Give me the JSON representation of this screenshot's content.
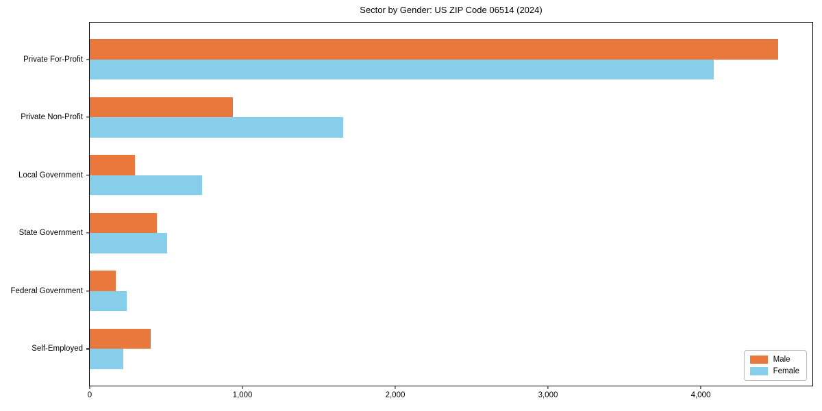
{
  "page": {
    "background": "#ffffff",
    "text_color": "#000000",
    "spine_color": "#000000"
  },
  "chart_data": {
    "type": "bar",
    "orientation": "horizontal",
    "title": "Sector by Gender: US ZIP Code 06514 (2024)",
    "xlabel": "",
    "ylabel": "",
    "grid": false,
    "categories": [
      "Private For-Profit",
      "Private Non-Profit",
      "Local Government",
      "State Government",
      "Federal Government",
      "Self-Employed"
    ],
    "series": [
      {
        "name": "Male",
        "color": "#e8783c",
        "values": [
          4506,
          937,
          296,
          438,
          170,
          400
        ]
      },
      {
        "name": "Female",
        "color": "#87ceeb",
        "values": [
          4085,
          1658,
          735,
          506,
          242,
          220
        ]
      }
    ],
    "xlim": [
      0,
      4731
    ],
    "x_ticks": [
      {
        "value": 0,
        "label": "0"
      },
      {
        "value": 1000,
        "label": "1,000"
      },
      {
        "value": 2000,
        "label": "2,000"
      },
      {
        "value": 3000,
        "label": "3,000"
      },
      {
        "value": 4000,
        "label": "4,000"
      }
    ],
    "legend": {
      "position": "lower right",
      "labels": [
        "Male",
        "Female"
      ]
    }
  }
}
